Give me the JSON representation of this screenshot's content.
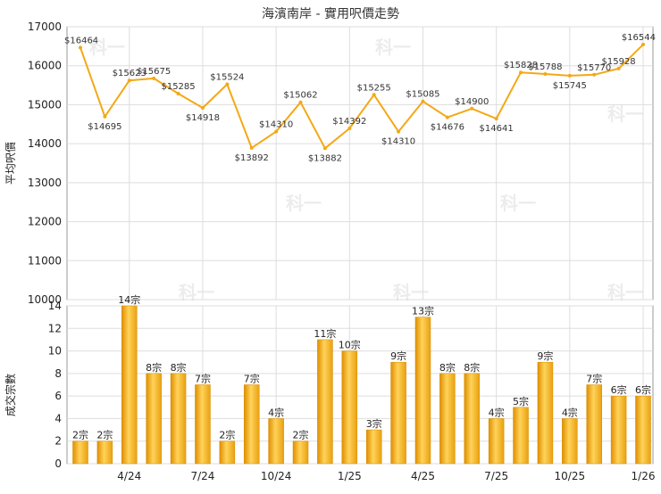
{
  "chart_data": [
    {
      "type": "line",
      "title": "海濱南岸 - 實用呎價走勢",
      "ylabel": "平均呎價",
      "ylim": [
        10000,
        17000
      ],
      "yticks": [
        10000,
        11000,
        12000,
        13000,
        14000,
        15000,
        16000,
        17000
      ],
      "grid": true,
      "color": "#f4a816",
      "values": [
        16464,
        14695,
        15623,
        15675,
        15285,
        14918,
        15524,
        13892,
        14310,
        15062,
        13882,
        14392,
        15255,
        14310,
        15085,
        14676,
        14900,
        14641,
        15828,
        15788,
        15745,
        15770,
        15928,
        16544
      ],
      "labels": [
        "$16464",
        "$14695",
        "$15623",
        "$15675",
        "$15285",
        "$14918",
        "$15524",
        "$13892",
        "$14310",
        "$15062",
        "$13882",
        "$14392",
        "$15255",
        "$14310",
        "$15085",
        "$14676",
        "$14900",
        "$14641",
        "$15828",
        "$15788",
        "$15745",
        "$15770",
        "$15928",
        "$16544"
      ]
    },
    {
      "type": "bar",
      "ylabel": "成交宗數",
      "ylim": [
        0,
        14
      ],
      "yticks": [
        0,
        2,
        4,
        6,
        8,
        10,
        12,
        14
      ],
      "grid": true,
      "color": "#f4a816",
      "values": [
        2,
        2,
        14,
        8,
        8,
        7,
        2,
        7,
        4,
        2,
        11,
        10,
        3,
        9,
        13,
        8,
        8,
        4,
        5,
        9,
        4,
        7,
        6,
        6
      ],
      "labels": [
        "2宗",
        "2宗",
        "14宗",
        "8宗",
        "8宗",
        "7宗",
        "2宗",
        "7宗",
        "4宗",
        "2宗",
        "11宗",
        "10宗",
        "3宗",
        "9宗",
        "13宗",
        "8宗",
        "8宗",
        "4宗",
        "5宗",
        "9宗",
        "4宗",
        "7宗",
        "6宗",
        "6宗"
      ]
    }
  ],
  "x_axis": {
    "tick_labels": [
      "4/24",
      "7/24",
      "10/24",
      "1/25",
      "4/25",
      "7/25",
      "10/25",
      "1/26"
    ],
    "tick_index": [
      2,
      5,
      8,
      11,
      14,
      17,
      20,
      23
    ]
  },
  "watermark": "科一"
}
